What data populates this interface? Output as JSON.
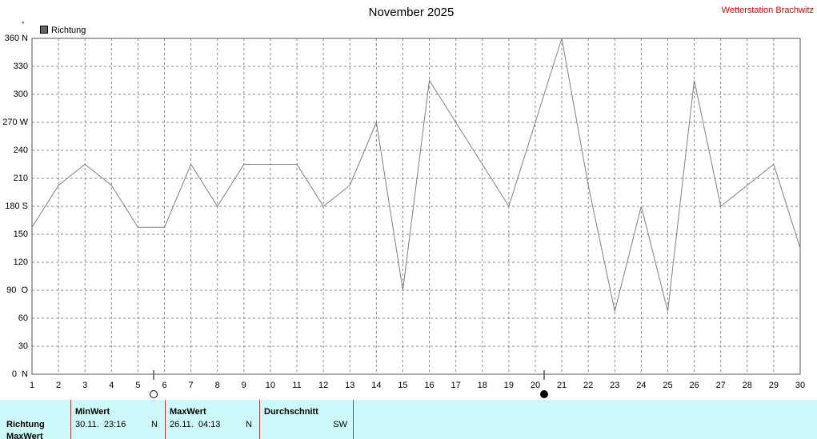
{
  "chart_data": {
    "type": "line",
    "title": "November 2025",
    "station": "Wetterstation Brachwitz",
    "unit": "°",
    "x": [
      1,
      2,
      3,
      4,
      5,
      6,
      7,
      8,
      9,
      10,
      11,
      12,
      13,
      14,
      15,
      16,
      17,
      18,
      19,
      20,
      21,
      22,
      23,
      24,
      25,
      26,
      27,
      28,
      29,
      30
    ],
    "series": [
      {
        "name": "Richtung",
        "color": "#808080",
        "values": [
          157.5,
          202.5,
          225,
          202.5,
          157.5,
          157.5,
          225,
          180,
          225,
          225,
          225,
          180,
          202.5,
          270,
          90,
          315,
          270,
          225,
          180,
          270,
          360,
          202.5,
          67.5,
          180,
          67.5,
          315,
          180,
          202.5,
          225,
          135
        ]
      }
    ],
    "xlim": [
      1,
      30
    ],
    "xticks": [
      1,
      2,
      3,
      4,
      5,
      6,
      7,
      8,
      9,
      10,
      11,
      12,
      13,
      14,
      15,
      16,
      17,
      18,
      19,
      20,
      21,
      22,
      23,
      24,
      25,
      26,
      27,
      28,
      29,
      30
    ],
    "ylim": [
      0,
      360
    ],
    "yticks": [
      {
        "value": 0,
        "label": "0  N"
      },
      30,
      60,
      {
        "value": 90,
        "label": "90  O"
      },
      120,
      150,
      {
        "value": 180,
        "label": "180 S"
      },
      210,
      240,
      {
        "value": 270,
        "label": "270 W"
      },
      300,
      330,
      {
        "value": 360,
        "label": "360 N"
      }
    ],
    "grid": true
  },
  "table": {
    "headers": [
      "MinWert",
      "MaxWert",
      "Durchschnitt"
    ],
    "rows": [
      [
        "Richtung",
        "30.11.  23:16",
        "N",
        "26.11.  04:13",
        "N",
        "SW"
      ],
      [
        "MaxWert"
      ]
    ]
  }
}
